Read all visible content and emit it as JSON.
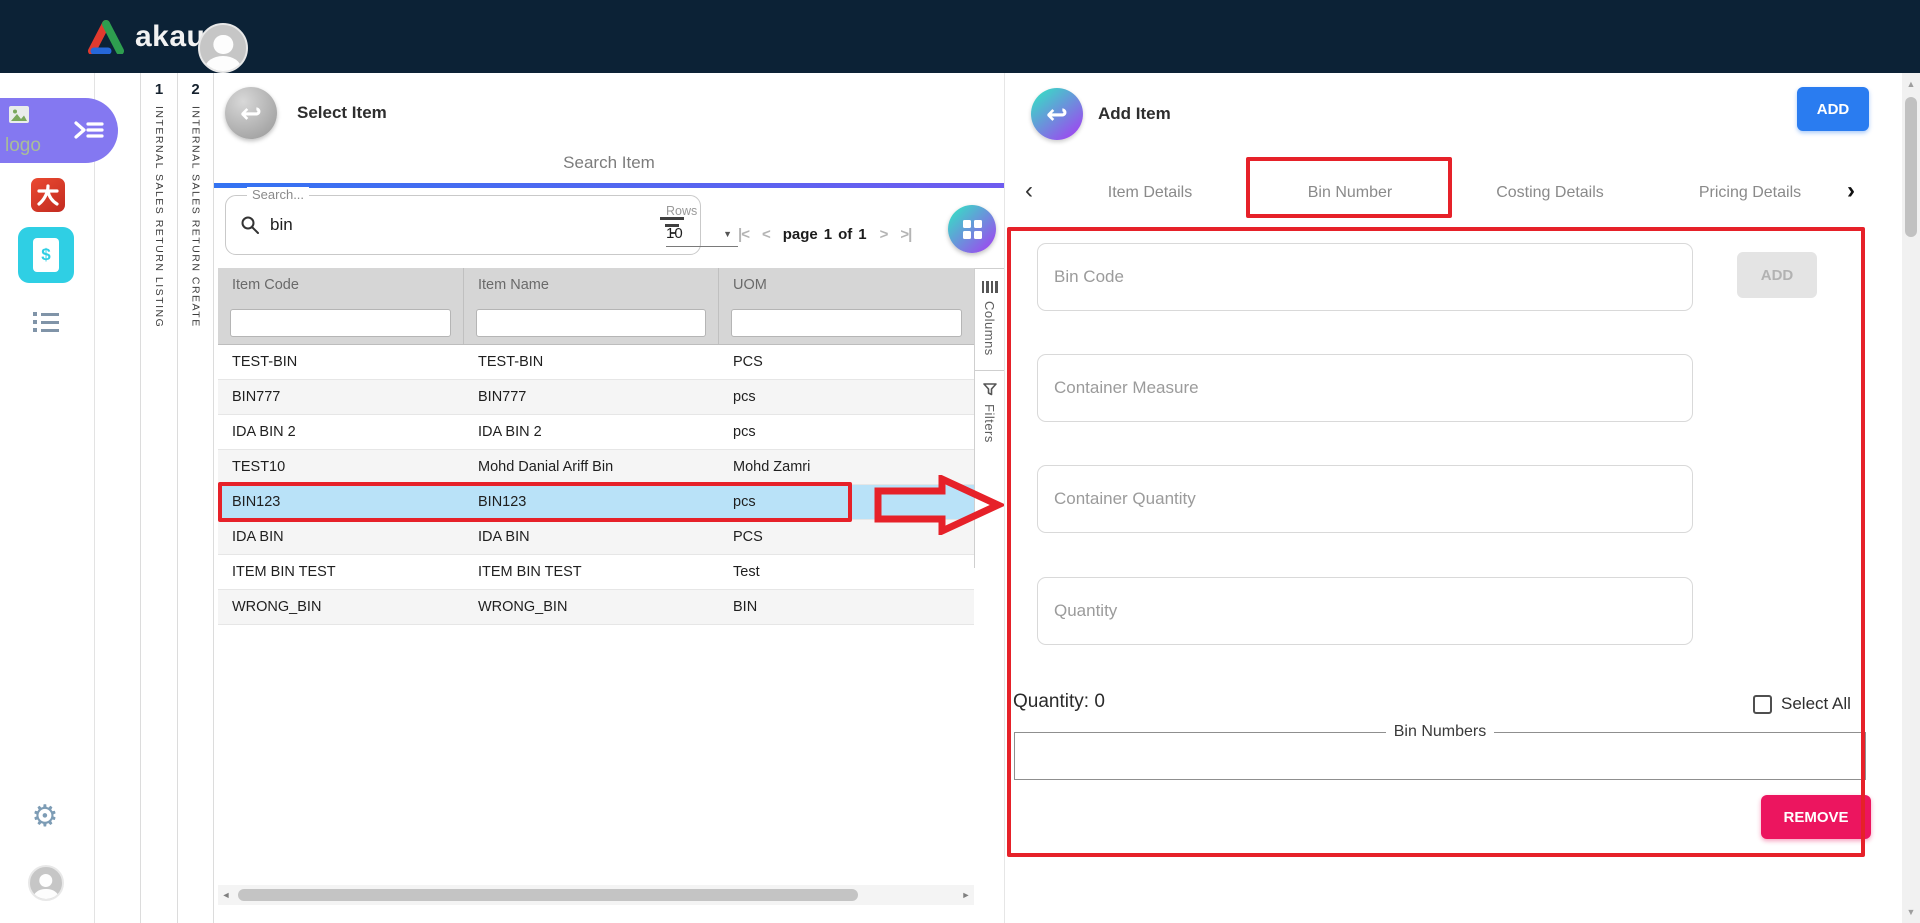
{
  "topbar": {
    "brand": "akaun"
  },
  "sidebar": {
    "logo_alt": "logo"
  },
  "workflow_tabs": [
    {
      "number": "1",
      "label": "INTERNAL SALES RETURN LISTING"
    },
    {
      "number": "2",
      "label": "INTERNAL SALES RETURN CREATE"
    }
  ],
  "select_item_panel": {
    "title": "Select Item",
    "tab_label": "Search Item",
    "search_label": "Search...",
    "search_value": "bin",
    "rows_label": "Rows",
    "rows_value": "10",
    "pager": {
      "first": "|<",
      "prev": "<",
      "page_word": "page",
      "page": "1",
      "of_word": "of",
      "total": "1",
      "next": ">",
      "last": ">|"
    },
    "table": {
      "columns": [
        "Item Code",
        "Item Name",
        "UOM"
      ],
      "rows": [
        {
          "code": "TEST-BIN",
          "name": "TEST-BIN",
          "uom": "PCS",
          "selected": false
        },
        {
          "code": "BIN777",
          "name": "BIN777",
          "uom": "pcs",
          "selected": false
        },
        {
          "code": "IDA BIN 2",
          "name": "IDA BIN 2",
          "uom": "pcs",
          "selected": false
        },
        {
          "code": "TEST10",
          "name": "Mohd Danial Ariff Bin",
          "uom": "Mohd Zamri",
          "selected": false
        },
        {
          "code": "BIN123",
          "name": "BIN123",
          "uom": "pcs",
          "selected": true
        },
        {
          "code": "IDA BIN",
          "name": "IDA BIN",
          "uom": "PCS",
          "selected": false
        },
        {
          "code": "ITEM BIN TEST",
          "name": "ITEM BIN TEST",
          "uom": "Test",
          "selected": false
        },
        {
          "code": "WRONG_BIN",
          "name": "WRONG_BIN",
          "uom": "BIN",
          "selected": false
        }
      ]
    },
    "side_tabs": [
      {
        "label": "Columns"
      },
      {
        "label": "Filters"
      }
    ]
  },
  "add_item_panel": {
    "title": "Add Item",
    "add_button": "ADD",
    "tabs": [
      {
        "label": "Item Details"
      },
      {
        "label": "Bin Number"
      },
      {
        "label": "Costing Details"
      },
      {
        "label": "Pricing Details"
      }
    ],
    "active_tab": "Bin Number",
    "fields": [
      {
        "placeholder": "Bin Code"
      },
      {
        "placeholder": "Container Measure"
      },
      {
        "placeholder": "Container Quantity"
      },
      {
        "placeholder": "Quantity"
      }
    ],
    "bin_code_add_button": "ADD",
    "quantity_summary": "Quantity: 0",
    "select_all_label": "Select All",
    "bin_numbers_legend": "Bin Numbers",
    "remove_button": "REMOVE"
  },
  "icons": {
    "back_arrow": "↩",
    "gear": "⚙",
    "caret_down": "▼",
    "tabs_prev": "‹",
    "tabs_next": "›",
    "scroll_up": "▲",
    "scroll_down": "▼",
    "scroll_left": "◄",
    "scroll_right": "►"
  },
  "colors": {
    "topbar_navy": "#0c2236",
    "accent_blue": "#2a7cf0",
    "remove_pink": "#ec155f",
    "annotation_red": "#e62129",
    "selected_row_blue": "#b9e2f8",
    "gradient_teal": "#34e2c4",
    "gradient_purple": "#9b4bef",
    "sidebar_chip_purple": "#8478f1"
  }
}
